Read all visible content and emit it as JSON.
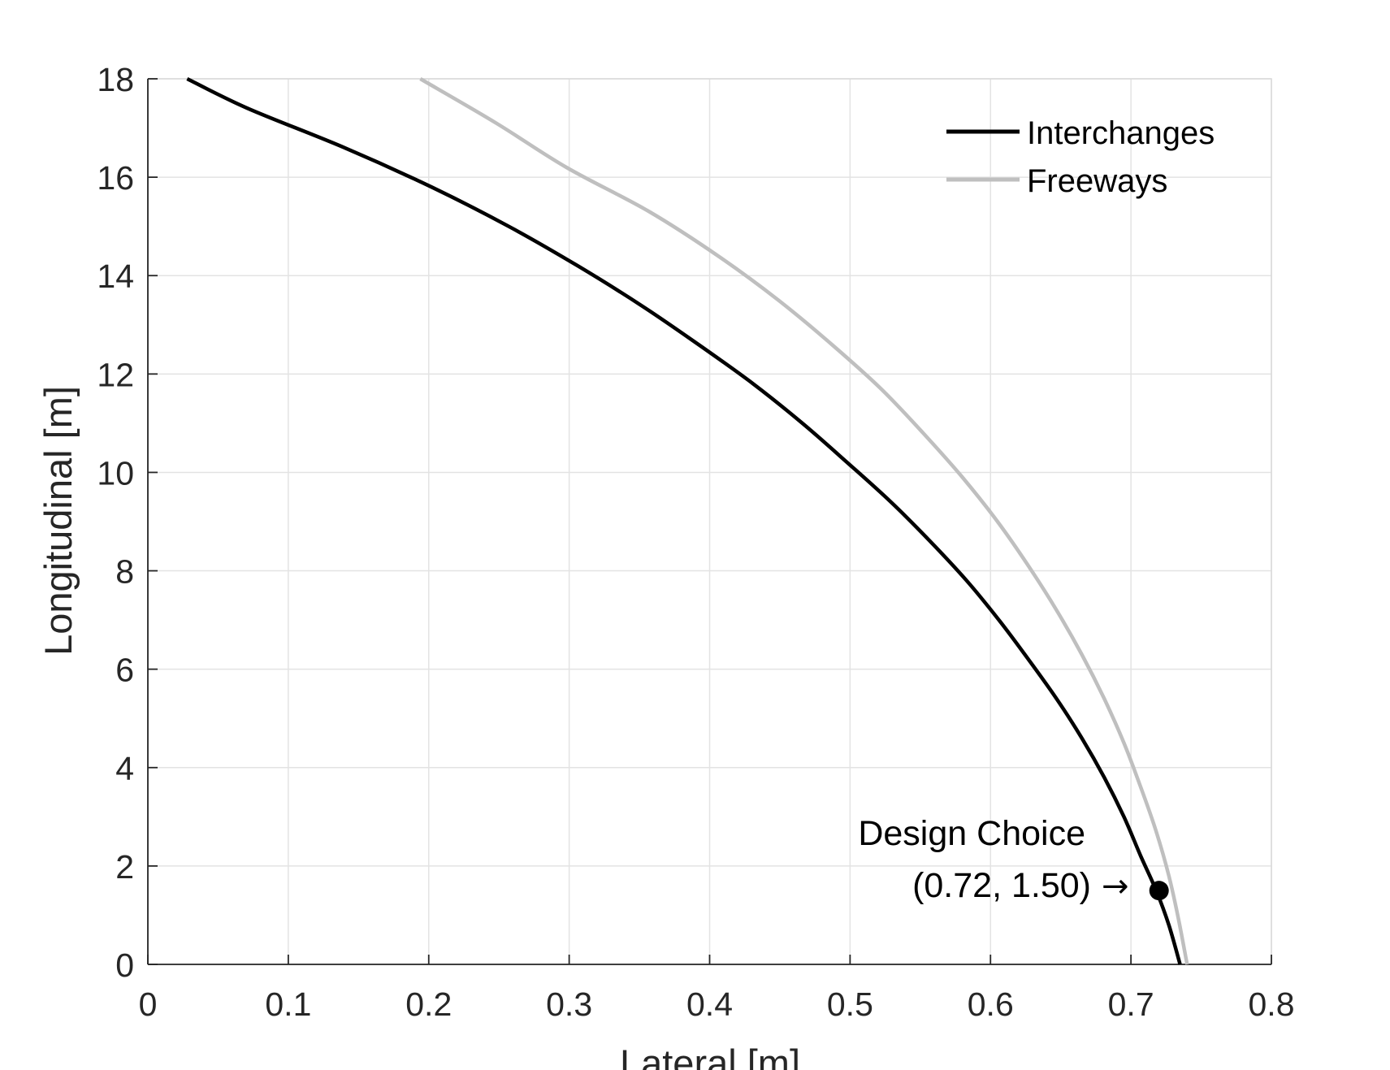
{
  "chart_data": {
    "type": "line",
    "xlabel": "Lateral [m]",
    "ylabel": "Longitudinal [m]",
    "xlim": [
      0,
      0.8
    ],
    "ylim": [
      0,
      18
    ],
    "xticks": [
      0,
      0.1,
      0.2,
      0.3,
      0.4,
      0.5,
      0.6,
      0.7,
      0.8
    ],
    "yticks": [
      0,
      2,
      4,
      6,
      8,
      10,
      12,
      14,
      16,
      18
    ],
    "xtick_labels": [
      "0",
      "0.1",
      "0.2",
      "0.3",
      "0.4",
      "0.5",
      "0.6",
      "0.7",
      "0.8"
    ],
    "ytick_labels": [
      "0",
      "2",
      "4",
      "6",
      "8",
      "10",
      "12",
      "14",
      "16",
      "18"
    ],
    "grid": true,
    "legend_position": "top-right",
    "series": [
      {
        "name": "Interchanges",
        "color": "#000000",
        "x": [
          0.735,
          0.727,
          0.718,
          0.707,
          0.695,
          0.681,
          0.665,
          0.647,
          0.627,
          0.606,
          0.583,
          0.557,
          0.529,
          0.498,
          0.466,
          0.431,
          0.392,
          0.351,
          0.306,
          0.257,
          0.202,
          0.14,
          0.071,
          0.028
        ],
        "y": [
          0,
          0.8,
          1.5,
          2.2,
          3,
          3.8,
          4.6,
          5.4,
          6.2,
          7,
          7.8,
          8.6,
          9.4,
          10.2,
          11,
          11.8,
          12.6,
          13.4,
          14.2,
          15,
          15.8,
          16.6,
          17.4,
          18
        ]
      },
      {
        "name": "Freeways",
        "color": "#bfbfbf",
        "x": [
          0.74,
          0.734,
          0.727,
          0.718,
          0.707,
          0.695,
          0.681,
          0.665,
          0.647,
          0.627,
          0.605,
          0.58,
          0.552,
          0.522,
          0.487,
          0.449,
          0.406,
          0.357,
          0.298,
          0.248,
          0.194
        ],
        "y": [
          0,
          0.9,
          1.8,
          2.7,
          3.6,
          4.5,
          5.4,
          6.3,
          7.2,
          8.1,
          9,
          9.9,
          10.8,
          11.7,
          12.6,
          13.5,
          14.4,
          15.3,
          16.2,
          17.1,
          18
        ]
      }
    ],
    "annotation": {
      "line1": "Design Choice",
      "line2": "(0.72, 1.50)",
      "arrow": "→",
      "point_x": 0.72,
      "point_y": 1.5
    }
  }
}
